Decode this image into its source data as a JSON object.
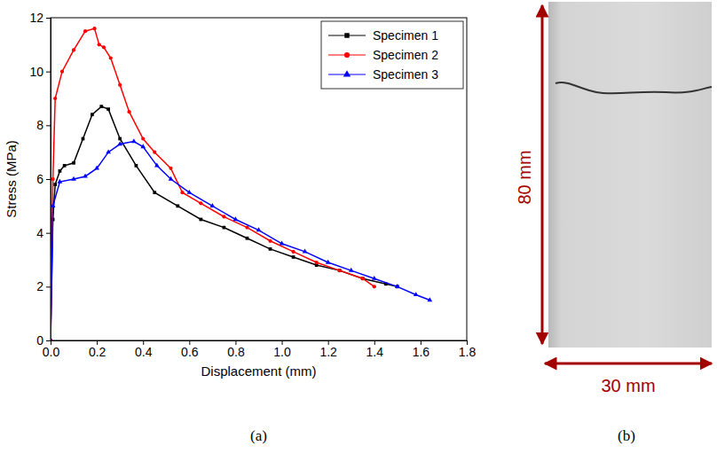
{
  "chart_data": {
    "type": "line",
    "panel_label": "(a)",
    "x_label": "Displacement (mm)",
    "y_label": "Stress (MPa)",
    "xlim": [
      0,
      1.8
    ],
    "xticks": [
      {
        "value": 0,
        "label": "0.0"
      },
      {
        "value": 0.2,
        "label": "0.2"
      },
      {
        "value": 0.4,
        "label": "0.4"
      },
      {
        "value": 0.6,
        "label": "0.6"
      },
      {
        "value": 0.8,
        "label": "0.8"
      },
      {
        "value": 1,
        "label": "1.0"
      },
      {
        "value": 1.2,
        "label": "1.2"
      },
      {
        "value": 1.4,
        "label": "1.4"
      },
      {
        "value": 1.6,
        "label": "1.6"
      },
      {
        "value": 1.8,
        "label": "1.8"
      }
    ],
    "ylim": [
      0,
      12
    ],
    "yticks": [
      0,
      2,
      4,
      6,
      8,
      10,
      12
    ],
    "legend": "upper right",
    "series": [
      {
        "name": "Specimen 1",
        "color": "#000000",
        "marker": "square",
        "x": [
          0,
          0.01,
          0.02,
          0.04,
          0.06,
          0.1,
          0.14,
          0.18,
          0.22,
          0.25,
          0.3,
          0.37,
          0.45,
          0.55,
          0.65,
          0.75,
          0.85,
          0.95,
          1.05,
          1.15,
          1.25,
          1.35,
          1.45,
          1.5
        ],
        "values": [
          0,
          4.5,
          5.8,
          6.3,
          6.5,
          6.6,
          7.5,
          8.4,
          8.7,
          8.6,
          7.5,
          6.5,
          5.5,
          5.0,
          4.5,
          4.2,
          3.8,
          3.4,
          3.1,
          2.8,
          2.6,
          2.3,
          2.1,
          2.0
        ]
      },
      {
        "name": "Specimen 2",
        "color": "#ff0000",
        "marker": "circle",
        "x": [
          0,
          0.01,
          0.02,
          0.05,
          0.1,
          0.15,
          0.19,
          0.21,
          0.23,
          0.26,
          0.3,
          0.34,
          0.4,
          0.45,
          0.52,
          0.57,
          0.65,
          0.75,
          0.85,
          0.95,
          1.05,
          1.15,
          1.25,
          1.35,
          1.4
        ],
        "values": [
          0,
          6.0,
          9.0,
          10.0,
          10.8,
          11.5,
          11.6,
          11.0,
          10.9,
          10.5,
          9.5,
          8.5,
          7.5,
          7.0,
          6.4,
          5.5,
          5.1,
          4.6,
          4.2,
          3.7,
          3.3,
          2.9,
          2.6,
          2.3,
          2.0
        ]
      },
      {
        "name": "Specimen 3",
        "color": "#0000ff",
        "marker": "triangle",
        "x": [
          0,
          0.01,
          0.04,
          0.1,
          0.15,
          0.2,
          0.25,
          0.3,
          0.36,
          0.4,
          0.46,
          0.52,
          0.6,
          0.7,
          0.8,
          0.9,
          1.0,
          1.1,
          1.2,
          1.3,
          1.4,
          1.5,
          1.58,
          1.64
        ],
        "values": [
          0,
          5.0,
          5.9,
          6.0,
          6.1,
          6.4,
          7.0,
          7.3,
          7.4,
          7.2,
          6.5,
          6.0,
          5.5,
          5.0,
          4.5,
          4.1,
          3.6,
          3.3,
          2.9,
          2.6,
          2.3,
          2.0,
          1.7,
          1.5
        ]
      }
    ]
  },
  "image_panel": {
    "panel_label": "(b)",
    "height_label": "80 mm",
    "width_label": "30 mm"
  }
}
